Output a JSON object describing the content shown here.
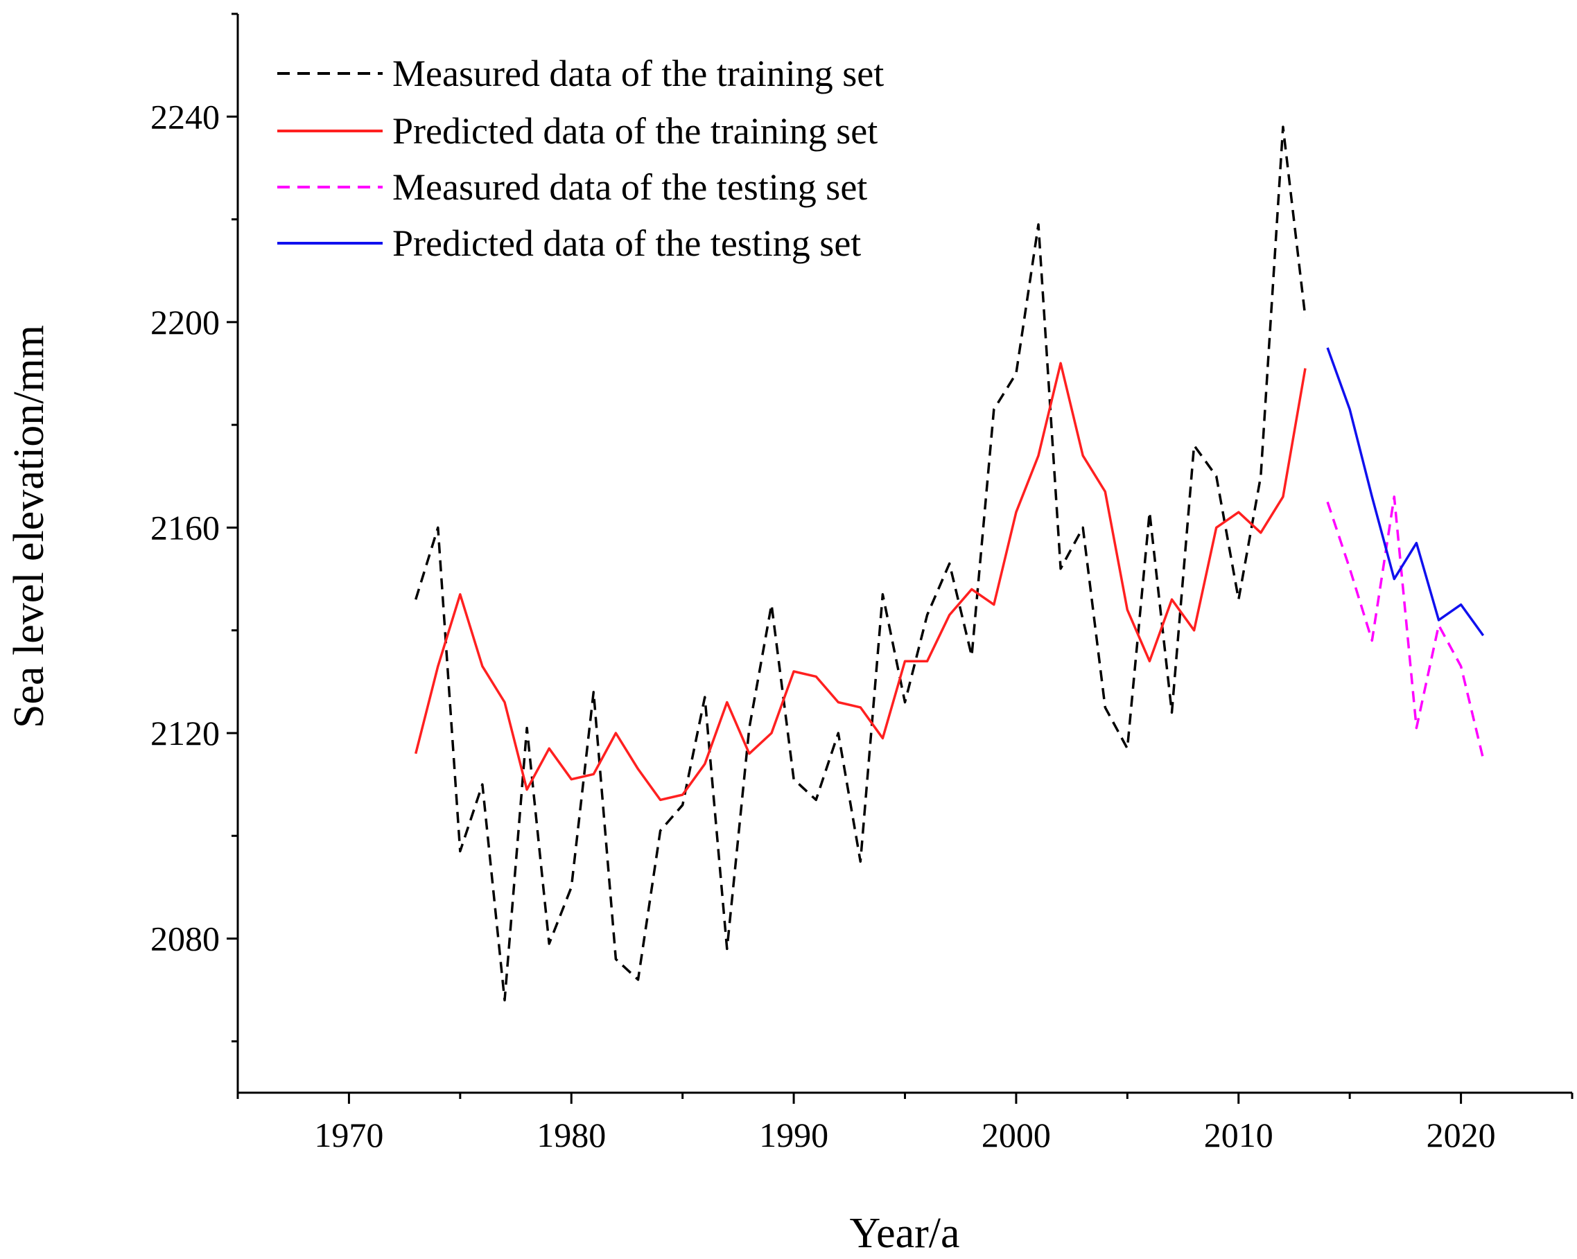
{
  "chart_data": {
    "type": "line",
    "title": "",
    "xlabel": "Year/a",
    "ylabel": "Sea level elevation/mm",
    "xlim": [
      1965,
      2025
    ],
    "ylim": [
      2050,
      2260
    ],
    "x_ticks": [
      1970,
      1980,
      1990,
      2000,
      2010,
      2020
    ],
    "x_tick_labels": [
      "1970",
      "1980",
      "1990",
      "2000",
      "2010",
      "2020"
    ],
    "y_ticks": [
      2080,
      2120,
      2160,
      2200,
      2240
    ],
    "y_tick_labels": [
      "2080",
      "2120",
      "2160",
      "2200",
      "2240"
    ],
    "legend_position": "top-left",
    "series": [
      {
        "name": "Measured data of the training set",
        "color": "#000000",
        "style": "dashed",
        "x": [
          1973,
          1974,
          1975,
          1976,
          1977,
          1978,
          1979,
          1980,
          1981,
          1982,
          1983,
          1984,
          1985,
          1986,
          1987,
          1988,
          1989,
          1990,
          1991,
          1992,
          1993,
          1994,
          1995,
          1996,
          1997,
          1998,
          1999,
          2000,
          2001,
          2002,
          2003,
          2004,
          2005,
          2006,
          2007,
          2008,
          2009,
          2010,
          2011,
          2012,
          2013
        ],
        "y": [
          2146,
          2160,
          2097,
          2110,
          2068,
          2121,
          2079,
          2090,
          2128,
          2076,
          2072,
          2101,
          2106,
          2127,
          2078,
          2121,
          2145,
          2111,
          2107,
          2120,
          2095,
          2147,
          2126,
          2143,
          2153,
          2135,
          2183,
          2190,
          2219,
          2152,
          2160,
          2125,
          2117,
          2163,
          2124,
          2176,
          2170,
          2146,
          2170,
          2238,
          2201
        ]
      },
      {
        "name": "Predicted data of the training set",
        "color": "#ff2020",
        "style": "solid",
        "x": [
          1973,
          1974,
          1975,
          1976,
          1977,
          1978,
          1979,
          1980,
          1981,
          1982,
          1983,
          1984,
          1985,
          1986,
          1987,
          1988,
          1989,
          1990,
          1991,
          1992,
          1993,
          1994,
          1995,
          1996,
          1997,
          1998,
          1999,
          2000,
          2001,
          2002,
          2003,
          2004,
          2005,
          2006,
          2007,
          2008,
          2009,
          2010,
          2011,
          2012,
          2013
        ],
        "y": [
          2116,
          2133,
          2147,
          2133,
          2126,
          2109,
          2117,
          2111,
          2112,
          2120,
          2113,
          2107,
          2108,
          2114,
          2126,
          2116,
          2120,
          2132,
          2131,
          2126,
          2125,
          2119,
          2134,
          2134,
          2143,
          2148,
          2145,
          2163,
          2174,
          2192,
          2174,
          2167,
          2144,
          2134,
          2146,
          2140,
          2160,
          2163,
          2159,
          2166,
          2191
        ]
      },
      {
        "name": "Measured data of the testing set",
        "color": "#ff00ff",
        "style": "dashed",
        "x": [
          2014,
          2015,
          2016,
          2017,
          2018,
          2019,
          2020,
          2021
        ],
        "y": [
          2165,
          2152,
          2138,
          2166,
          2121,
          2141,
          2133,
          2115
        ]
      },
      {
        "name": "Predicted data of the testing set",
        "color": "#1010ee",
        "style": "solid",
        "x": [
          2014,
          2015,
          2016,
          2017,
          2018,
          2019,
          2020,
          2021
        ],
        "y": [
          2195,
          2183,
          2166,
          2150,
          2157,
          2142,
          2145,
          2139
        ]
      }
    ]
  }
}
